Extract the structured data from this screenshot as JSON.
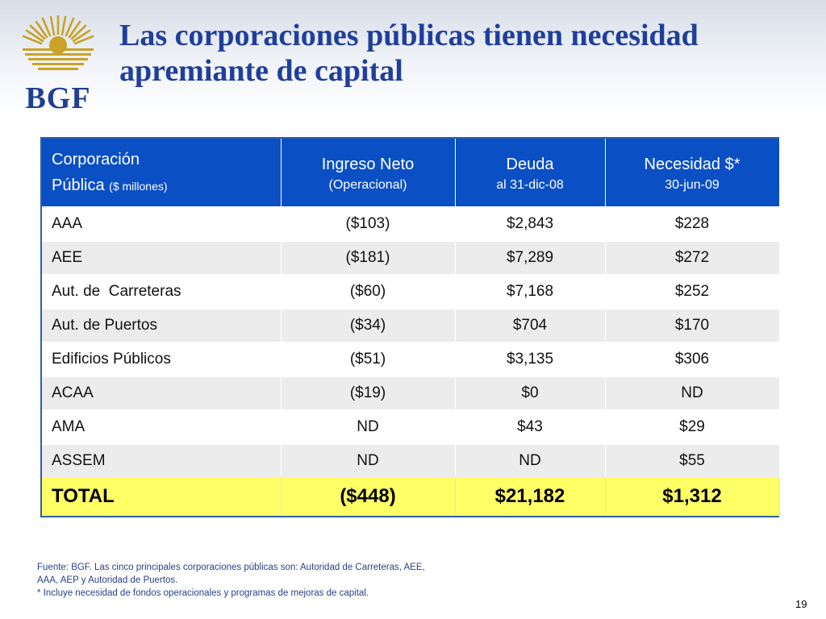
{
  "logo": {
    "text": "BGF",
    "gold": "#c9a227",
    "navy": "#1f3f8f"
  },
  "title": "Las corporaciones públicas tienen necesidad apremiante de capital",
  "table": {
    "headers": {
      "corp_main1": "Corporación",
      "corp_main2": "Pública",
      "corp_units": "($ millones)",
      "ingreso_main": "Ingreso Neto",
      "ingreso_sub": "(Operacional)",
      "deuda_main": "Deuda",
      "deuda_sub": "al 31-dic-08",
      "necesidad_main": "Necesidad $*",
      "necesidad_sub": "30-jun-09"
    },
    "rows": [
      {
        "name": "AAA",
        "ingreso": "($103)",
        "deuda": "$2,843",
        "necesidad": "$228"
      },
      {
        "name": "AEE",
        "ingreso": "($181)",
        "deuda": "$7,289",
        "necesidad": "$272"
      },
      {
        "name": "Aut. de  Carreteras",
        "ingreso": "($60)",
        "deuda": "$7,168",
        "necesidad": "$252"
      },
      {
        "name": "Aut. de Puertos",
        "ingreso": "($34)",
        "deuda": "$704",
        "necesidad": "$170"
      },
      {
        "name": "Edificios Públicos",
        "ingreso": "($51)",
        "deuda": "$3,135",
        "necesidad": "$306"
      },
      {
        "name": "ACAA",
        "ingreso": "($19)",
        "deuda": "$0",
        "necesidad": "ND"
      },
      {
        "name": "AMA",
        "ingreso": "ND",
        "deuda": "$43",
        "necesidad": "$29"
      },
      {
        "name": "ASSEM",
        "ingreso": "ND",
        "deuda": "ND",
        "necesidad": "$55"
      }
    ],
    "total": {
      "name": "TOTAL",
      "ingreso": "($448)",
      "deuda": "$21,182",
      "necesidad": "$1,312"
    },
    "colors": {
      "header_bg": "#0a4fc4",
      "total_bg": "#ffff66",
      "stripe_bg": "#ececec"
    }
  },
  "footnote": {
    "line1": "Fuente: BGF. Las cinco principales corporaciones públicas son: Autoridad de Carreteras, AEE,",
    "line2": "AAA, AEP y Autoridad de Puertos.",
    "line3": "* Incluye necesidad de fondos operacionales y programas de mejoras de capital."
  },
  "page_number": "19"
}
